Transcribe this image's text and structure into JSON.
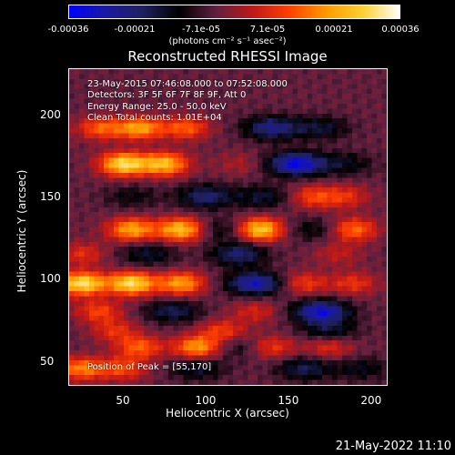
{
  "colorbar": {
    "ticks": [
      "-0.00036",
      "-0.00021",
      "-7.1e-05",
      "7.1e-05",
      "0.00021",
      "0.00036"
    ],
    "unit": "(photons cm⁻² s⁻¹ asec⁻²)",
    "colors": [
      "#0000ff",
      "#1a1aa0",
      "#202060",
      "#000000",
      "#602040",
      "#c01818",
      "#ff4000",
      "#ff9a00",
      "#ffd030",
      "#ffffff"
    ]
  },
  "chart_data": {
    "type": "heatmap",
    "title": "Reconstructed RHESSI Image",
    "xlabel": "Heliocentric X (arcsec)",
    "ylabel": "Heliocentric Y (arcsec)",
    "xlim": [
      17,
      210
    ],
    "ylim": [
      35,
      228
    ],
    "xticks": [
      "50",
      "100",
      "150",
      "200"
    ],
    "yticks": [
      "50",
      "100",
      "150",
      "200"
    ],
    "vmin": -0.00036,
    "vmax": 0.00036,
    "bands": [
      {
        "y": 192,
        "peaks": [
          [
            36,
            0.00018
          ],
          [
            60,
            0.00025
          ],
          [
            88,
            0.00018
          ]
        ],
        "troughs": [
          [
            140,
            -0.0002
          ],
          [
            170,
            -0.00012
          ]
        ]
      },
      {
        "y": 170,
        "peaks": [
          [
            50,
            0.00034
          ],
          [
            75,
            0.00029
          ],
          [
            120,
            6e-05
          ]
        ],
        "troughs": [
          [
            155,
            -0.0003
          ],
          [
            185,
            -0.0001
          ]
        ]
      },
      {
        "y": 150,
        "peaks": [
          [
            165,
            0.00015
          ],
          [
            185,
            0.00012
          ]
        ],
        "troughs": [
          [
            55,
            -8e-05
          ],
          [
            100,
            -0.00018
          ],
          [
            135,
            -0.00012
          ]
        ]
      },
      {
        "y": 130,
        "peaks": [
          [
            55,
            0.00026
          ],
          [
            85,
            0.0003
          ],
          [
            133,
            0.00032
          ],
          [
            190,
            0.0002
          ]
        ],
        "troughs": [
          [
            110,
            -0.0001
          ],
          [
            165,
            -9e-05
          ]
        ]
      },
      {
        "y": 115,
        "peaks": [
          [
            25,
            0.00012
          ],
          [
            180,
            8e-05
          ]
        ],
        "troughs": [
          [
            65,
            -0.00012
          ],
          [
            120,
            -0.00018
          ]
        ]
      },
      {
        "y": 97,
        "peaks": [
          [
            25,
            0.00035
          ],
          [
            55,
            0.00034
          ],
          [
            85,
            0.00025
          ],
          [
            160,
            0.00014
          ],
          [
            190,
            0.00013
          ]
        ],
        "troughs": [
          [
            130,
            -0.00026
          ]
        ]
      },
      {
        "y": 80,
        "peaks": [
          [
            35,
            0.00015
          ],
          [
            130,
            0.0001
          ]
        ],
        "troughs": [
          [
            80,
            -0.00015
          ],
          [
            170,
            -0.00028
          ]
        ]
      },
      {
        "y": 68,
        "peaks": [
          [
            45,
            0.00012
          ],
          [
            110,
            0.00014
          ]
        ],
        "troughs": [
          [
            175,
            -0.00012
          ]
        ]
      },
      {
        "y": 58,
        "peaks": [
          [
            60,
            0.00018
          ],
          [
            95,
            0.00025
          ],
          [
            140,
            0.00014
          ],
          [
            175,
            0.00012
          ]
        ],
        "troughs": [
          [
            120,
            -8e-05
          ]
        ]
      },
      {
        "y": 45,
        "peaks": [
          [
            25,
            0.00022
          ],
          [
            50,
            0.00016
          ]
        ],
        "troughs": [
          [
            95,
            -0.00012
          ],
          [
            160,
            -0.00015
          ],
          [
            195,
            -0.0001
          ]
        ]
      }
    ]
  },
  "annotations": {
    "time": "23-May-2015 07:46:08.000 to 07:52:08.000",
    "detectors": "Detectors: 3F 5F 6F 7F 8F 9F, Att 0",
    "energy": "Energy Range: 25.0 - 50.0 keV",
    "clean": "Clean     Total counts: 1.01E+04",
    "peak": "Position of Peak = [55,170]"
  },
  "timestamp": "21-May-2022 11:10"
}
